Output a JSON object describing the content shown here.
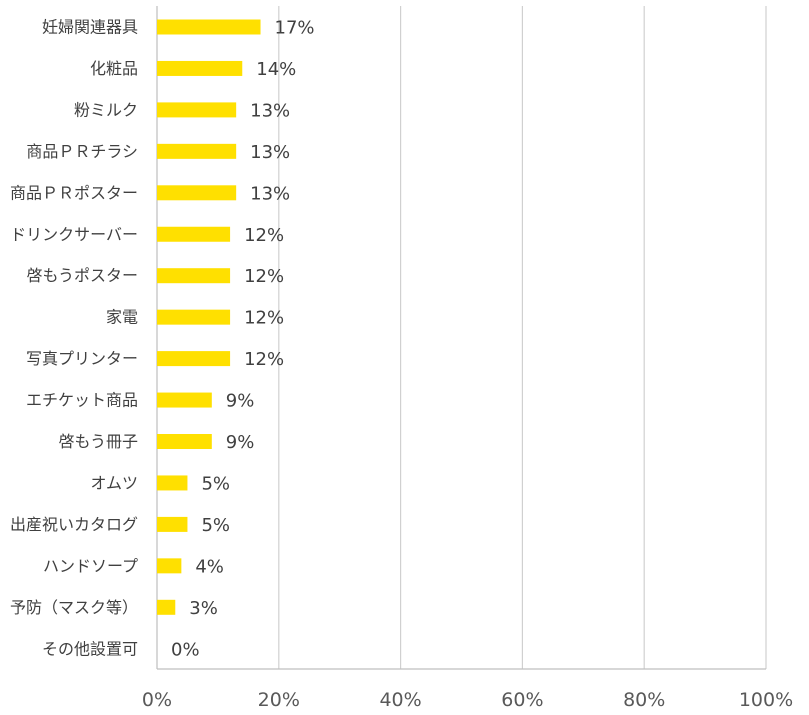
{
  "chart_data": {
    "type": "bar",
    "orientation": "horizontal",
    "title": "",
    "xlabel": "",
    "ylabel": "",
    "categories": [
      "妊婦関連器具",
      "化粧品",
      "粉ミルク",
      "商品ＰＲチラシ",
      "商品ＰＲポスター",
      "ドリンクサーバー",
      "啓もうポスター",
      "家電",
      "写真プリンター",
      "エチケット商品",
      "啓もう冊子",
      "オムツ",
      "出産祝いカタログ",
      "ハンドソープ",
      "予防（マスク等）",
      "その他設置可"
    ],
    "values": [
      17,
      14,
      13,
      13,
      13,
      12,
      12,
      12,
      12,
      9,
      9,
      5,
      5,
      4,
      3,
      0
    ],
    "value_labels": [
      "17%",
      "14%",
      "13%",
      "13%",
      "13%",
      "12%",
      "12%",
      "12%",
      "12%",
      "9%",
      "9%",
      "5%",
      "5%",
      "4%",
      "3%",
      "0%"
    ],
    "xlim": [
      0,
      100
    ],
    "x_ticks": [
      0,
      20,
      40,
      60,
      80,
      100
    ],
    "x_tick_labels": [
      "0%",
      "20%",
      "40%",
      "60%",
      "80%",
      "100%"
    ],
    "grid": true,
    "legend": "none",
    "bar_color": "#FFE000"
  }
}
